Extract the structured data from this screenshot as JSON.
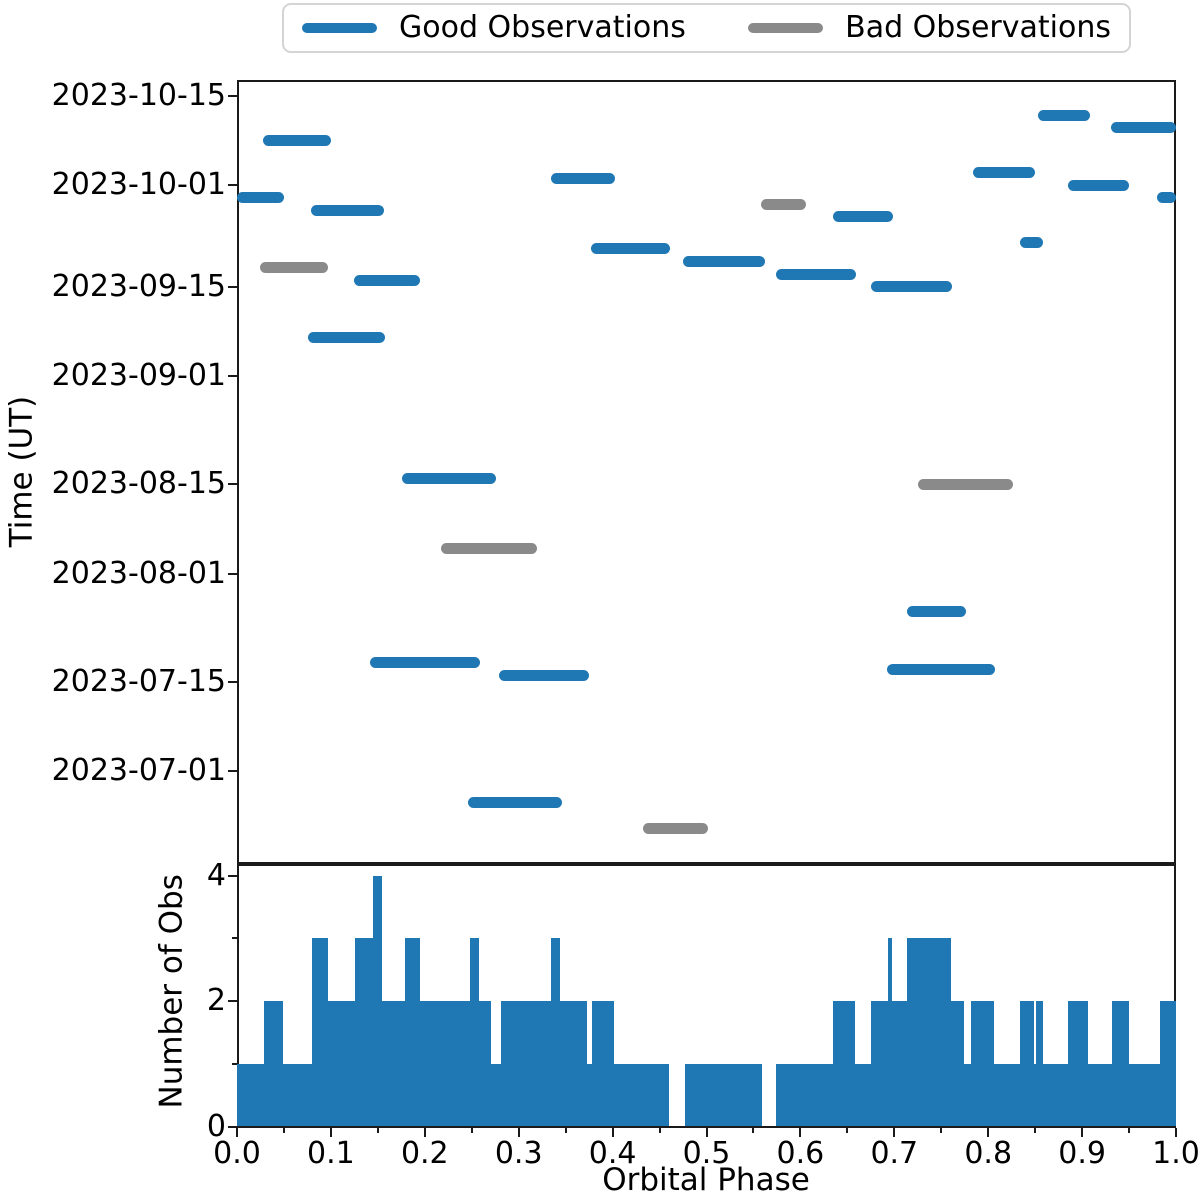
{
  "legend": {
    "items": [
      {
        "label": "Good Observations",
        "color": "#1f77b4"
      },
      {
        "label": "Bad Observations",
        "color": "#8a8a8a"
      }
    ]
  },
  "chart_data": [
    {
      "type": "timeline-segments",
      "title": "",
      "xlabel": "",
      "ylabel": "Time (UT)",
      "xlim": [
        0,
        1
      ],
      "y_axis": {
        "unit": "date",
        "min_day_of_year_2023": 167.4,
        "max_day_of_year_2023": 290.5,
        "grid": false
      },
      "ytick_dates": [
        "2023-10-15",
        "2023-10-01",
        "2023-09-15",
        "2023-09-01",
        "2023-08-15",
        "2023-08-01",
        "2023-07-15",
        "2023-07-01"
      ],
      "legend_position": "top-outside",
      "legend": [
        {
          "name": "Good Observations",
          "color": "#1f77b4"
        },
        {
          "name": "Bad Observations",
          "color": "#8a8a8a"
        }
      ],
      "series": [
        {
          "name": "Good Observations",
          "color": "#1f77b4",
          "segments": [
            {
              "phase_start": 0.0,
              "phase_end": 0.05,
              "date": "2023-09-29"
            },
            {
              "phase_start": 0.028,
              "phase_end": 0.1,
              "date": "2023-10-08"
            },
            {
              "phase_start": 0.076,
              "phase_end": 0.158,
              "date": "2023-09-07"
            },
            {
              "phase_start": 0.079,
              "phase_end": 0.157,
              "date": "2023-09-27"
            },
            {
              "phase_start": 0.125,
              "phase_end": 0.195,
              "date": "2023-09-16"
            },
            {
              "phase_start": 0.142,
              "phase_end": 0.259,
              "date": "2023-07-18"
            },
            {
              "phase_start": 0.176,
              "phase_end": 0.276,
              "date": "2023-08-16"
            },
            {
              "phase_start": 0.246,
              "phase_end": 0.346,
              "date": "2023-06-26"
            },
            {
              "phase_start": 0.279,
              "phase_end": 0.375,
              "date": "2023-07-16"
            },
            {
              "phase_start": 0.334,
              "phase_end": 0.403,
              "date": "2023-10-02"
            },
            {
              "phase_start": 0.377,
              "phase_end": 0.461,
              "date": "2023-09-21"
            },
            {
              "phase_start": 0.475,
              "phase_end": 0.562,
              "date": "2023-09-19"
            },
            {
              "phase_start": 0.574,
              "phase_end": 0.659,
              "date": "2023-09-17"
            },
            {
              "phase_start": 0.635,
              "phase_end": 0.699,
              "date": "2023-09-26"
            },
            {
              "phase_start": 0.675,
              "phase_end": 0.761,
              "date": "2023-09-15"
            },
            {
              "phase_start": 0.692,
              "phase_end": 0.807,
              "date": "2023-07-17"
            },
            {
              "phase_start": 0.713,
              "phase_end": 0.776,
              "date": "2023-07-26"
            },
            {
              "phase_start": 0.784,
              "phase_end": 0.85,
              "date": "2023-10-03"
            },
            {
              "phase_start": 0.834,
              "phase_end": 0.858,
              "date": "2023-09-22"
            },
            {
              "phase_start": 0.853,
              "phase_end": 0.908,
              "date": "2023-10-12"
            },
            {
              "phase_start": 0.885,
              "phase_end": 0.95,
              "date": "2023-10-01"
            },
            {
              "phase_start": 0.931,
              "phase_end": 1.0,
              "date": "2023-10-10"
            },
            {
              "phase_start": 0.98,
              "phase_end": 1.0,
              "date": "2023-09-29"
            }
          ]
        },
        {
          "name": "Bad Observations",
          "color": "#8a8a8a",
          "segments": [
            {
              "phase_start": 0.024,
              "phase_end": 0.097,
              "date": "2023-09-18"
            },
            {
              "phase_start": 0.217,
              "phase_end": 0.32,
              "date": "2023-08-05"
            },
            {
              "phase_start": 0.432,
              "phase_end": 0.502,
              "date": "2023-06-22"
            },
            {
              "phase_start": 0.558,
              "phase_end": 0.606,
              "date": "2023-09-28"
            },
            {
              "phase_start": 0.725,
              "phase_end": 0.826,
              "date": "2023-08-15"
            }
          ]
        }
      ]
    },
    {
      "type": "step-histogram",
      "title": "",
      "xlabel": "Orbital Phase",
      "ylabel": "Number of Obs",
      "xlim": [
        0,
        1
      ],
      "ylim": [
        0,
        4.2
      ],
      "yticks": [
        0,
        2,
        4
      ],
      "minor_yticks": [
        1,
        3
      ],
      "xticks": [
        "0.0",
        "0.1",
        "0.2",
        "0.3",
        "0.4",
        "0.5",
        "0.6",
        "0.7",
        "0.8",
        "0.9",
        "1.0"
      ],
      "xtick_values": [
        0.0,
        0.1,
        0.2,
        0.3,
        0.4,
        0.5,
        0.6,
        0.7,
        0.8,
        0.9,
        1.0
      ],
      "minor_xtick_step": 0.05,
      "bar_color": "#1f77b4",
      "steps": [
        [
          0.0,
          0.029,
          1
        ],
        [
          0.029,
          0.049,
          2
        ],
        [
          0.049,
          0.08,
          1
        ],
        [
          0.08,
          0.097,
          3
        ],
        [
          0.097,
          0.126,
          2
        ],
        [
          0.126,
          0.145,
          3
        ],
        [
          0.145,
          0.154,
          4
        ],
        [
          0.154,
          0.179,
          2
        ],
        [
          0.179,
          0.195,
          3
        ],
        [
          0.195,
          0.248,
          2
        ],
        [
          0.248,
          0.258,
          3
        ],
        [
          0.258,
          0.27,
          2
        ],
        [
          0.27,
          0.281,
          1
        ],
        [
          0.281,
          0.334,
          2
        ],
        [
          0.334,
          0.344,
          3
        ],
        [
          0.344,
          0.373,
          2
        ],
        [
          0.373,
          0.378,
          1
        ],
        [
          0.378,
          0.402,
          2
        ],
        [
          0.402,
          0.46,
          1
        ],
        [
          0.46,
          0.477,
          0
        ],
        [
          0.477,
          0.559,
          1
        ],
        [
          0.559,
          0.574,
          0
        ],
        [
          0.574,
          0.635,
          1
        ],
        [
          0.635,
          0.658,
          2
        ],
        [
          0.658,
          0.675,
          1
        ],
        [
          0.675,
          0.693,
          2
        ],
        [
          0.693,
          0.698,
          3
        ],
        [
          0.698,
          0.713,
          2
        ],
        [
          0.713,
          0.76,
          3
        ],
        [
          0.76,
          0.774,
          2
        ],
        [
          0.774,
          0.782,
          1
        ],
        [
          0.782,
          0.806,
          2
        ],
        [
          0.806,
          0.834,
          1
        ],
        [
          0.834,
          0.849,
          2
        ],
        [
          0.849,
          0.851,
          1
        ],
        [
          0.851,
          0.858,
          2
        ],
        [
          0.858,
          0.885,
          1
        ],
        [
          0.885,
          0.906,
          2
        ],
        [
          0.906,
          0.932,
          1
        ],
        [
          0.932,
          0.95,
          2
        ],
        [
          0.95,
          0.983,
          1
        ],
        [
          0.983,
          1.0,
          2
        ]
      ]
    }
  ]
}
